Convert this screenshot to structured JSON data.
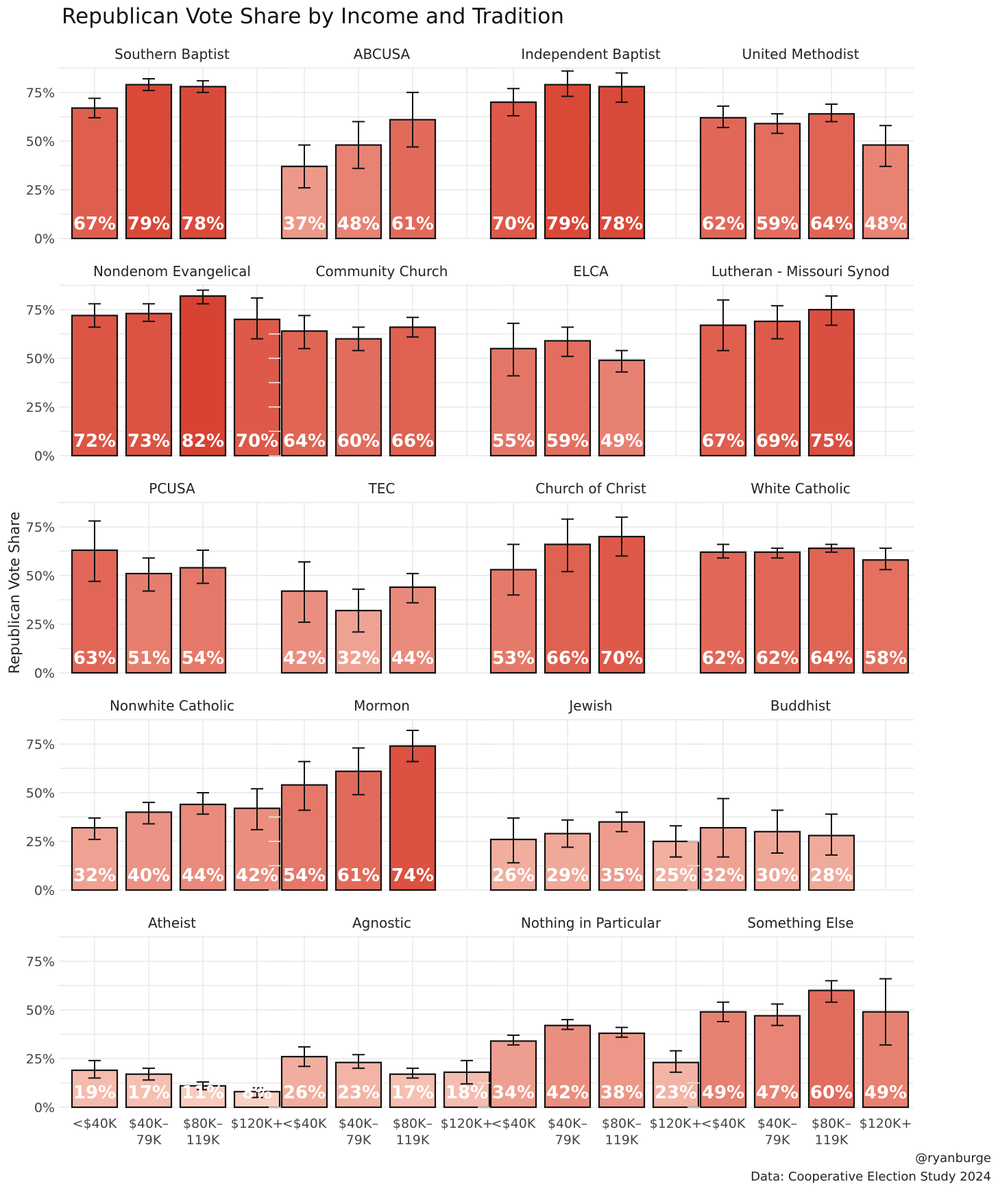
{
  "chart_data": {
    "type": "bar",
    "title": "Republican Vote Share by Income and Tradition",
    "ylabel": "Republican Vote Share",
    "xlabel": "",
    "ylim": [
      0,
      0.88
    ],
    "yticks": [
      0,
      0.25,
      0.5,
      0.75
    ],
    "ytick_labels": [
      "0%",
      "25%",
      "50%",
      "75%"
    ],
    "categories": [
      [
        "<$40K"
      ],
      [
        "$40K–",
        "79K"
      ],
      [
        "$80K–",
        "119K"
      ],
      [
        "$120K+"
      ]
    ],
    "color_scale": {
      "low": "#fde0d2",
      "high": "#d73c2c",
      "min_value": 0.0,
      "max_value": 0.85
    },
    "facets": [
      {
        "name": "Southern Baptist",
        "bars": [
          {
            "v": 0.67,
            "lo": 0.62,
            "hi": 0.72,
            "label": "67%"
          },
          {
            "v": 0.79,
            "lo": 0.76,
            "hi": 0.82,
            "label": "79%"
          },
          {
            "v": 0.78,
            "lo": 0.75,
            "hi": 0.81,
            "label": "78%"
          }
        ]
      },
      {
        "name": "ABCUSA",
        "bars": [
          {
            "v": 0.37,
            "lo": 0.26,
            "hi": 0.48,
            "label": "37%"
          },
          {
            "v": 0.48,
            "lo": 0.36,
            "hi": 0.6,
            "label": "48%"
          },
          {
            "v": 0.61,
            "lo": 0.47,
            "hi": 0.75,
            "label": "61%"
          }
        ]
      },
      {
        "name": "Independent Baptist",
        "bars": [
          {
            "v": 0.7,
            "lo": 0.63,
            "hi": 0.77,
            "label": "70%"
          },
          {
            "v": 0.79,
            "lo": 0.73,
            "hi": 0.86,
            "label": "79%"
          },
          {
            "v": 0.78,
            "lo": 0.7,
            "hi": 0.85,
            "label": "78%"
          }
        ]
      },
      {
        "name": "United Methodist",
        "bars": [
          {
            "v": 0.62,
            "lo": 0.57,
            "hi": 0.68,
            "label": "62%"
          },
          {
            "v": 0.59,
            "lo": 0.54,
            "hi": 0.64,
            "label": "59%"
          },
          {
            "v": 0.64,
            "lo": 0.6,
            "hi": 0.69,
            "label": "64%"
          },
          {
            "v": 0.48,
            "lo": 0.37,
            "hi": 0.58,
            "label": "48%"
          }
        ]
      },
      {
        "name": "Nondenom Evangelical",
        "bars": [
          {
            "v": 0.72,
            "lo": 0.66,
            "hi": 0.78,
            "label": "72%"
          },
          {
            "v": 0.73,
            "lo": 0.69,
            "hi": 0.78,
            "label": "73%"
          },
          {
            "v": 0.82,
            "lo": 0.78,
            "hi": 0.85,
            "label": "82%"
          },
          {
            "v": 0.7,
            "lo": 0.6,
            "hi": 0.81,
            "label": "70%"
          }
        ]
      },
      {
        "name": "Community Church",
        "bars": [
          {
            "v": 0.64,
            "lo": 0.55,
            "hi": 0.72,
            "label": "64%"
          },
          {
            "v": 0.6,
            "lo": 0.54,
            "hi": 0.66,
            "label": "60%"
          },
          {
            "v": 0.66,
            "lo": 0.61,
            "hi": 0.71,
            "label": "66%"
          }
        ]
      },
      {
        "name": "ELCA",
        "bars": [
          {
            "v": 0.55,
            "lo": 0.41,
            "hi": 0.68,
            "label": "55%"
          },
          {
            "v": 0.59,
            "lo": 0.51,
            "hi": 0.66,
            "label": "59%"
          },
          {
            "v": 0.49,
            "lo": 0.43,
            "hi": 0.54,
            "label": "49%"
          }
        ]
      },
      {
        "name": "Lutheran - Missouri Synod",
        "bars": [
          {
            "v": 0.67,
            "lo": 0.54,
            "hi": 0.8,
            "label": "67%"
          },
          {
            "v": 0.69,
            "lo": 0.6,
            "hi": 0.77,
            "label": "69%"
          },
          {
            "v": 0.75,
            "lo": 0.67,
            "hi": 0.82,
            "label": "75%"
          }
        ]
      },
      {
        "name": "PCUSA",
        "bars": [
          {
            "v": 0.63,
            "lo": 0.47,
            "hi": 0.78,
            "label": "63%"
          },
          {
            "v": 0.51,
            "lo": 0.42,
            "hi": 0.59,
            "label": "51%"
          },
          {
            "v": 0.54,
            "lo": 0.46,
            "hi": 0.63,
            "label": "54%"
          }
        ]
      },
      {
        "name": "TEC",
        "bars": [
          {
            "v": 0.42,
            "lo": 0.26,
            "hi": 0.57,
            "label": "42%"
          },
          {
            "v": 0.32,
            "lo": 0.21,
            "hi": 0.43,
            "label": "32%"
          },
          {
            "v": 0.44,
            "lo": 0.36,
            "hi": 0.51,
            "label": "44%"
          }
        ]
      },
      {
        "name": "Church of Christ",
        "bars": [
          {
            "v": 0.53,
            "lo": 0.4,
            "hi": 0.66,
            "label": "53%"
          },
          {
            "v": 0.66,
            "lo": 0.52,
            "hi": 0.79,
            "label": "66%"
          },
          {
            "v": 0.7,
            "lo": 0.6,
            "hi": 0.8,
            "label": "70%"
          }
        ]
      },
      {
        "name": "White Catholic",
        "bars": [
          {
            "v": 0.62,
            "lo": 0.59,
            "hi": 0.66,
            "label": "62%"
          },
          {
            "v": 0.62,
            "lo": 0.59,
            "hi": 0.64,
            "label": "62%"
          },
          {
            "v": 0.64,
            "lo": 0.62,
            "hi": 0.66,
            "label": "64%"
          },
          {
            "v": 0.58,
            "lo": 0.53,
            "hi": 0.64,
            "label": "58%"
          }
        ]
      },
      {
        "name": "Nonwhite Catholic",
        "bars": [
          {
            "v": 0.32,
            "lo": 0.26,
            "hi": 0.37,
            "label": "32%"
          },
          {
            "v": 0.4,
            "lo": 0.34,
            "hi": 0.45,
            "label": "40%"
          },
          {
            "v": 0.44,
            "lo": 0.39,
            "hi": 0.5,
            "label": "44%"
          },
          {
            "v": 0.42,
            "lo": 0.31,
            "hi": 0.52,
            "label": "42%"
          }
        ]
      },
      {
        "name": "Mormon",
        "bars": [
          {
            "v": 0.54,
            "lo": 0.41,
            "hi": 0.66,
            "label": "54%"
          },
          {
            "v": 0.61,
            "lo": 0.49,
            "hi": 0.73,
            "label": "61%"
          },
          {
            "v": 0.74,
            "lo": 0.66,
            "hi": 0.82,
            "label": "74%"
          }
        ]
      },
      {
        "name": "Jewish",
        "bars": [
          {
            "v": 0.26,
            "lo": 0.14,
            "hi": 0.37,
            "label": "26%"
          },
          {
            "v": 0.29,
            "lo": 0.22,
            "hi": 0.36,
            "label": "29%"
          },
          {
            "v": 0.35,
            "lo": 0.3,
            "hi": 0.4,
            "label": "35%"
          },
          {
            "v": 0.25,
            "lo": 0.17,
            "hi": 0.33,
            "label": "25%"
          }
        ]
      },
      {
        "name": "Buddhist",
        "bars": [
          {
            "v": 0.32,
            "lo": 0.17,
            "hi": 0.47,
            "label": "32%"
          },
          {
            "v": 0.3,
            "lo": 0.19,
            "hi": 0.41,
            "label": "30%"
          },
          {
            "v": 0.28,
            "lo": 0.18,
            "hi": 0.39,
            "label": "28%"
          }
        ]
      },
      {
        "name": "Atheist",
        "bars": [
          {
            "v": 0.19,
            "lo": 0.15,
            "hi": 0.24,
            "label": "19%"
          },
          {
            "v": 0.17,
            "lo": 0.14,
            "hi": 0.2,
            "label": "17%"
          },
          {
            "v": 0.11,
            "lo": 0.09,
            "hi": 0.13,
            "label": "11%"
          },
          {
            "v": 0.08,
            "lo": 0.05,
            "hi": 0.1,
            "label": "8%"
          }
        ]
      },
      {
        "name": "Agnostic",
        "bars": [
          {
            "v": 0.26,
            "lo": 0.21,
            "hi": 0.31,
            "label": "26%"
          },
          {
            "v": 0.23,
            "lo": 0.2,
            "hi": 0.27,
            "label": "23%"
          },
          {
            "v": 0.17,
            "lo": 0.15,
            "hi": 0.2,
            "label": "17%"
          },
          {
            "v": 0.18,
            "lo": 0.12,
            "hi": 0.24,
            "label": "18%"
          }
        ]
      },
      {
        "name": "Nothing in Particular",
        "bars": [
          {
            "v": 0.34,
            "lo": 0.32,
            "hi": 0.37,
            "label": "34%"
          },
          {
            "v": 0.42,
            "lo": 0.4,
            "hi": 0.45,
            "label": "42%"
          },
          {
            "v": 0.38,
            "lo": 0.36,
            "hi": 0.41,
            "label": "38%"
          },
          {
            "v": 0.23,
            "lo": 0.18,
            "hi": 0.29,
            "label": "23%"
          }
        ]
      },
      {
        "name": "Something Else",
        "bars": [
          {
            "v": 0.49,
            "lo": 0.44,
            "hi": 0.54,
            "label": "49%"
          },
          {
            "v": 0.47,
            "lo": 0.42,
            "hi": 0.53,
            "label": "47%"
          },
          {
            "v": 0.6,
            "lo": 0.54,
            "hi": 0.65,
            "label": "60%"
          },
          {
            "v": 0.49,
            "lo": 0.32,
            "hi": 0.66,
            "label": "49%"
          }
        ]
      }
    ]
  },
  "caption": {
    "handle": "@ryanburge",
    "source": "Data: Cooperative Election Study 2024"
  }
}
